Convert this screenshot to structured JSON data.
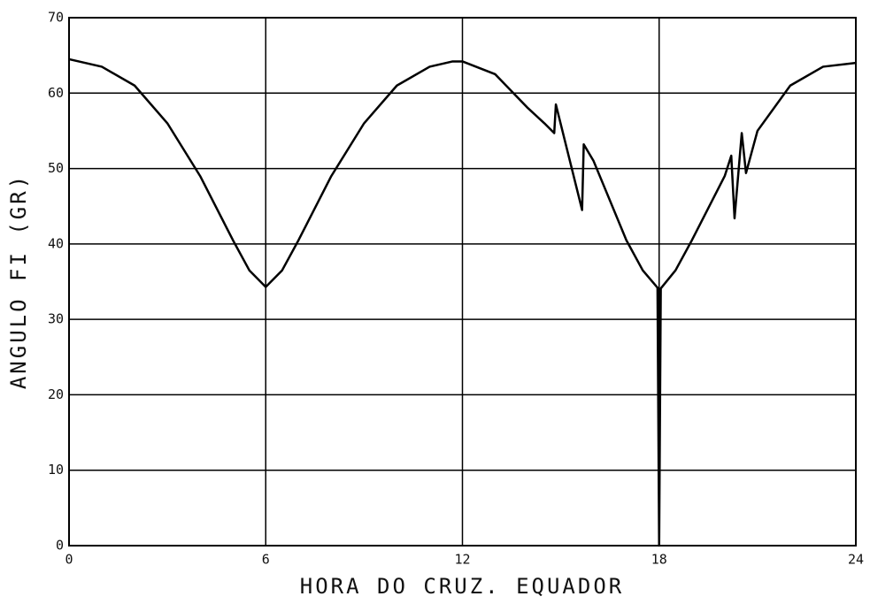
{
  "chart_data": {
    "type": "line",
    "xlabel": "HORA DO CRUZ. EQUADOR",
    "ylabel": "ANGULO FI (GR)",
    "series": [
      {
        "color": "#000000",
        "x": [
          0,
          1,
          2,
          3,
          4,
          5,
          5.5,
          6,
          6.5,
          7,
          8,
          9,
          10,
          11,
          11.7,
          12,
          13,
          14,
          14.5,
          14.8,
          14.85,
          15.65,
          15.7,
          16,
          17,
          17.5,
          17.95,
          18,
          18.05,
          18.5,
          19,
          20,
          20.2,
          20.3,
          20.52,
          20.65,
          21,
          22,
          23,
          24
        ],
        "values": [
          64.5,
          63.5,
          61,
          56,
          49,
          40.5,
          36.5,
          34.3,
          36.5,
          40.5,
          49,
          56,
          61,
          63.5,
          64.2,
          64.2,
          62.5,
          58,
          56,
          54.7,
          58.5,
          44.5,
          53.2,
          51,
          40.5,
          36.5,
          34.2,
          0,
          34.1,
          36.5,
          40.5,
          49,
          51.7,
          43.4,
          54.7,
          49.4,
          55,
          61,
          63.5,
          64
        ]
      }
    ],
    "xlim": [
      0,
      24
    ],
    "xticks": [
      0,
      6,
      12,
      18,
      24
    ],
    "ylim": [
      0,
      70
    ],
    "yticks": [
      0,
      10,
      20,
      30,
      40,
      50,
      60,
      70
    ],
    "grid": true
  }
}
